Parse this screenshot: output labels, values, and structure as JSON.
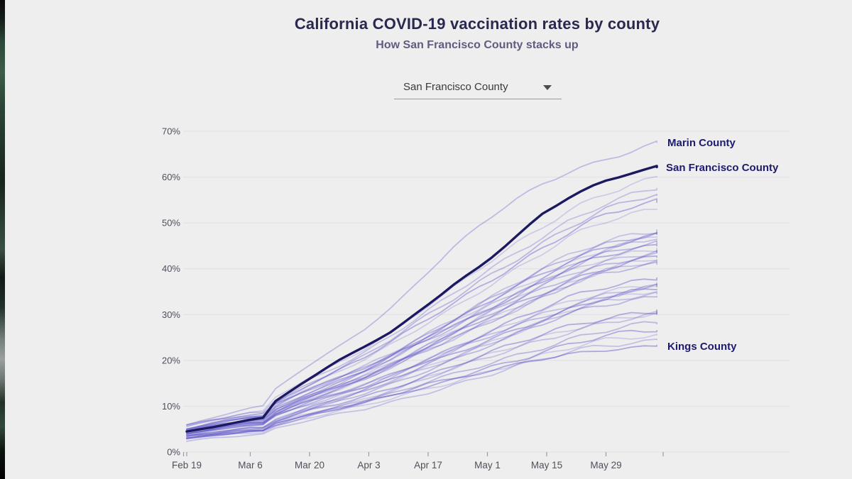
{
  "window": {
    "background_color": "#efeeef",
    "left_edge": "desktop-wallpaper-sliver"
  },
  "header": {
    "title": "California COVID-19 vaccination rates by county",
    "subtitle": "How San Francisco County stacks up"
  },
  "county_selector": {
    "value": "San Francisco County",
    "icon": "chevron-down-icon",
    "underline_color": "#9b9b9b"
  },
  "annotations": {
    "marin_label": "Marin County",
    "sf_label": "San Francisco County",
    "kings_label": "Kings County"
  },
  "colors": {
    "title": "#29284f",
    "subtitle": "#4b4a71",
    "county_label": "#1c1b6d",
    "gridline": "#e2e1e4",
    "tick": "#9b9ba4",
    "axis_text": "#504f5c",
    "background_line": "#5b52c7",
    "highlight_line": "#1a1961"
  },
  "chart_data": {
    "type": "line",
    "title": "California COVID-19 vaccination rates by county",
    "xlabel": "",
    "ylabel": "",
    "x_axis": {
      "unit": "date (2021)",
      "tick_labels": [
        "Feb 19",
        "Mar 6",
        "Mar 20",
        "Apr 3",
        "Apr 17",
        "May 1",
        "May 15",
        "May 29"
      ],
      "tick_days": [
        0,
        15,
        29,
        43,
        57,
        71,
        85,
        99
      ],
      "extra_unlabeled_tick_day": 112.5,
      "range_days": [
        0,
        111
      ]
    },
    "y_axis": {
      "unit": "percent of population vaccinated",
      "tick_labels": [
        "0%",
        "10%",
        "20%",
        "30%",
        "40%",
        "50%",
        "60%",
        "70%"
      ],
      "range": [
        0,
        70
      ],
      "gridlines": true
    },
    "legend": "none (direct line labels: Marin County, San Francisco County, Kings County)",
    "estimation_note": "Unlabeled county lines read from pixels; values approximate.",
    "sample_days": [
      0,
      7,
      14,
      18,
      20,
      28,
      35,
      42,
      49,
      56,
      63,
      70,
      77,
      84,
      91,
      98,
      105,
      111
    ],
    "highlight_series": {
      "name": "San Francisco County",
      "values": [
        4.5,
        5.5,
        7.0,
        7.5,
        10.5,
        15.5,
        19.5,
        23.0,
        26.5,
        31.5,
        36.5,
        41.0,
        46.5,
        52.0,
        56.0,
        58.8,
        60.8,
        62.2
      ]
    },
    "labeled_series": {
      "marin": {
        "name": "Marin County",
        "values": [
          6.0,
          7.5,
          9.5,
          10.0,
          13.0,
          18.5,
          22.5,
          27.0,
          32.0,
          38.5,
          44.5,
          50.0,
          54.5,
          58.5,
          61.5,
          63.8,
          65.8,
          67.6
        ]
      },
      "kings": {
        "name": "Kings County",
        "values": [
          3.0,
          3.6,
          4.4,
          4.6,
          6.0,
          8.0,
          9.5,
          11.0,
          12.5,
          14.2,
          15.8,
          17.3,
          18.8,
          20.2,
          21.4,
          22.3,
          22.9,
          23.3
        ]
      }
    },
    "growth_curve": [
      0,
      0.03,
      0.055,
      0.06,
      0.105,
      0.19,
      0.25,
      0.315,
      0.39,
      0.475,
      0.555,
      0.64,
      0.72,
      0.8,
      0.875,
      0.935,
      0.975,
      1.0
    ],
    "background_series": [
      {
        "start": 5.5,
        "final": 60.0
      },
      {
        "start": 5.5,
        "final": 57.5
      },
      {
        "start": 5.0,
        "final": 56.0
      },
      {
        "start": 5.0,
        "final": 54.5
      },
      {
        "start": 5.0,
        "final": 53.0
      },
      {
        "start": 5.0,
        "final": 48.5
      },
      {
        "start": 5.0,
        "final": 48.0
      },
      {
        "start": 4.5,
        "final": 47.5
      },
      {
        "start": 4.5,
        "final": 47.0
      },
      {
        "start": 4.0,
        "final": 46.5
      },
      {
        "start": 4.5,
        "final": 45.5
      },
      {
        "start": 6.0,
        "final": 45.0
      },
      {
        "start": 4.0,
        "final": 44.5
      },
      {
        "start": 4.0,
        "final": 44.0
      },
      {
        "start": 3.5,
        "final": 43.5
      },
      {
        "start": 4.5,
        "final": 42.5
      },
      {
        "start": 4.0,
        "final": 42.0
      },
      {
        "start": 4.0,
        "final": 41.5
      },
      {
        "start": 5.0,
        "final": 41.0
      },
      {
        "start": 4.0,
        "final": 38.0
      },
      {
        "start": 4.5,
        "final": 37.0
      },
      {
        "start": 4.0,
        "final": 36.5
      },
      {
        "start": 4.5,
        "final": 36.0
      },
      {
        "start": 3.5,
        "final": 35.5
      },
      {
        "start": 3.0,
        "final": 35.0
      },
      {
        "start": 3.5,
        "final": 34.5
      },
      {
        "start": 3.0,
        "final": 34.0
      },
      {
        "start": 3.5,
        "final": 31.0
      },
      {
        "start": 3.0,
        "final": 30.5
      },
      {
        "start": 3.0,
        "final": 30.0
      },
      {
        "start": 3.0,
        "final": 28.0
      },
      {
        "start": 3.5,
        "final": 26.5
      },
      {
        "start": 3.0,
        "final": 25.5
      },
      {
        "start": 2.5,
        "final": 24.5
      }
    ]
  }
}
